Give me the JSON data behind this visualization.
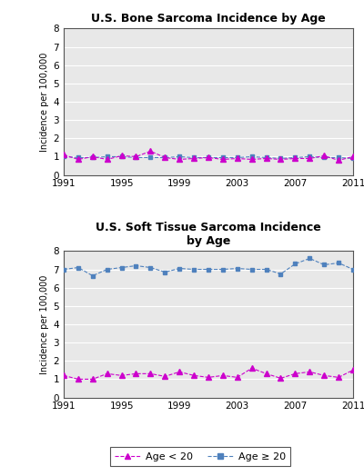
{
  "years": [
    1991,
    1992,
    1993,
    1994,
    1995,
    1996,
    1997,
    1998,
    1999,
    2000,
    2001,
    2002,
    2003,
    2004,
    2005,
    2006,
    2007,
    2008,
    2009,
    2010,
    2011
  ],
  "bone_lt20": [
    1.1,
    0.85,
    1.0,
    0.85,
    1.05,
    1.0,
    1.3,
    0.95,
    0.85,
    0.9,
    0.95,
    0.85,
    0.9,
    0.85,
    0.9,
    0.85,
    0.9,
    0.9,
    1.05,
    0.8,
    1.0
  ],
  "bone_gte20": [
    1.0,
    0.95,
    0.95,
    1.0,
    1.0,
    0.95,
    0.95,
    0.95,
    1.0,
    0.95,
    0.95,
    0.95,
    0.95,
    1.0,
    0.95,
    0.9,
    0.95,
    1.0,
    0.95,
    0.95,
    0.9
  ],
  "soft_lt20": [
    1.2,
    1.0,
    1.0,
    1.3,
    1.2,
    1.3,
    1.3,
    1.15,
    1.4,
    1.2,
    1.1,
    1.2,
    1.1,
    1.6,
    1.3,
    1.05,
    1.3,
    1.4,
    1.2,
    1.1,
    1.5
  ],
  "soft_gte20": [
    7.0,
    7.1,
    6.65,
    7.0,
    7.1,
    7.2,
    7.1,
    6.85,
    7.05,
    7.0,
    7.0,
    7.0,
    7.05,
    7.0,
    7.0,
    6.75,
    7.3,
    7.6,
    7.25,
    7.35,
    7.0
  ],
  "color_lt20": "#cc00cc",
  "color_gte20": "#4f81bd",
  "title_bone": "U.S. Bone Sarcoma Incidence by Age",
  "title_soft": "U.S. Soft Tissue Sarcoma Incidence\nby Age",
  "ylabel": "Incidence per 100,000",
  "ylim": [
    0,
    8
  ],
  "yticks": [
    0,
    1,
    2,
    3,
    4,
    5,
    6,
    7,
    8
  ],
  "xticks": [
    1991,
    1995,
    1999,
    2003,
    2007,
    2011
  ],
  "legend_lt20": "Age < 20",
  "legend_gte20": "Age ≥ 20",
  "bg_color": "#ffffff",
  "plot_bg": "#e8e8e8",
  "grid_color": "#ffffff"
}
